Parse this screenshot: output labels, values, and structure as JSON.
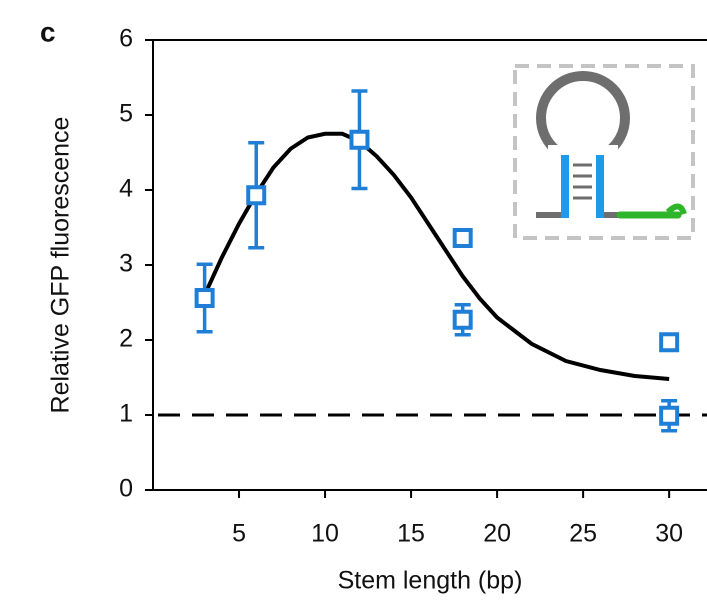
{
  "chart_data": {
    "type": "scatter",
    "panel_label": "c",
    "x_label": "Stem length (bp)",
    "y_label": "Relative GFP fluorescence",
    "xlim": [
      0,
      32.2
    ],
    "ylim": [
      0,
      6
    ],
    "xticks": [
      5,
      10,
      15,
      20,
      25,
      30
    ],
    "yticks": [
      0,
      1,
      2,
      3,
      4,
      5,
      6
    ],
    "reference_line": 1,
    "points": {
      "color": "#1f7fd6",
      "x": [
        3,
        6,
        12,
        18,
        18,
        30,
        30
      ],
      "values": [
        2.56,
        3.93,
        4.67,
        3.36,
        2.27,
        1.97,
        0.99
      ],
      "errors": [
        0.45,
        0.7,
        0.65,
        0.05,
        0.2,
        0.05,
        0.2
      ]
    },
    "fit": {
      "color": "#000000",
      "x": [
        3,
        4,
        5,
        6,
        7,
        8,
        9,
        10,
        11,
        12,
        13,
        14,
        15,
        16,
        17,
        18,
        19,
        20,
        22,
        24,
        26,
        28,
        30
      ],
      "values": [
        2.6,
        3.1,
        3.55,
        3.95,
        4.3,
        4.55,
        4.7,
        4.75,
        4.75,
        4.65,
        4.45,
        4.2,
        3.9,
        3.55,
        3.2,
        2.85,
        2.55,
        2.3,
        1.95,
        1.72,
        1.6,
        1.52,
        1.48
      ]
    }
  }
}
